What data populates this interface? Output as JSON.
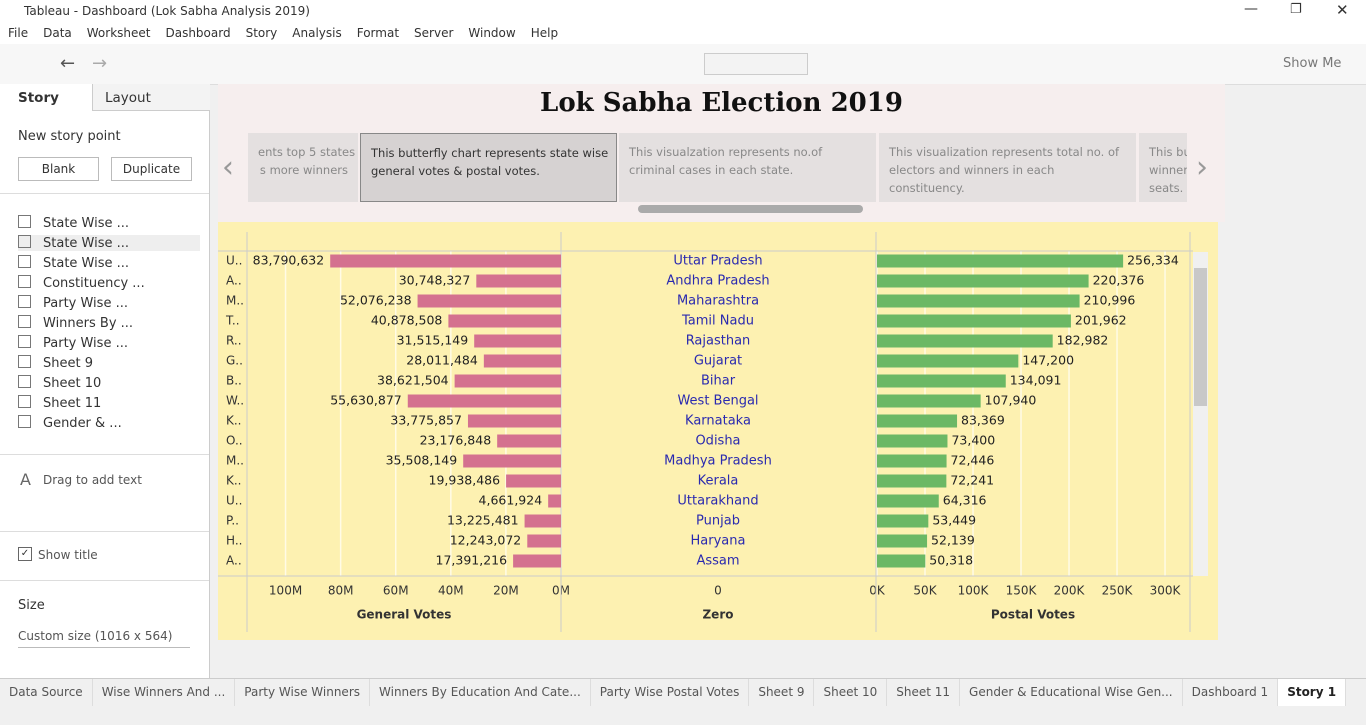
{
  "window": {
    "title": "Tableau - Dashboard (Lok Sabha Analysis 2019)"
  },
  "menu": [
    "File",
    "Data",
    "Worksheet",
    "Dashboard",
    "Story",
    "Analysis",
    "Format",
    "Server",
    "Window",
    "Help"
  ],
  "toolbar": {
    "show_me": "Show Me"
  },
  "sidebar": {
    "tabs": [
      "Story",
      "Layout"
    ],
    "new_story_point": "New story point",
    "buttons": [
      "Blank",
      "Duplicate"
    ],
    "sheets": [
      "State Wise ...",
      "State Wise ...",
      "State Wise ...",
      "Constituency ...",
      "Party Wise ...",
      "Winners By ...",
      "Party Wise ...",
      "Sheet 9",
      "Sheet 10",
      "Sheet 11",
      "Gender & ..."
    ],
    "drag_text": "Drag to add text",
    "show_title": "Show title",
    "size_label": "Size",
    "size_value": "Custom size (1016 x 564)"
  },
  "story": {
    "title": "Lok Sabha Election 2019",
    "points": [
      [
        "ents top 5 states",
        "s more winners"
      ],
      [
        "This butterfly chart represents state wise",
        "general votes & postal votes."
      ],
      [
        "This visualzation represents no.of",
        "criminal cases in each state."
      ],
      [
        "This visualization represents total no. of",
        "electors and winners in each",
        "constituency."
      ],
      [
        "This bu",
        "winner",
        "seats."
      ]
    ]
  },
  "chart": {
    "row_labels": [
      "U..",
      "A..",
      "M..",
      "T..",
      "R..",
      "G..",
      "B..",
      "W..",
      "K..",
      "O..",
      "M..",
      "K..",
      "U..",
      "P..",
      "H..",
      "A.."
    ],
    "states": [
      "Uttar Pradesh",
      "Andhra Pradesh",
      "Maharashtra",
      "Tamil Nadu",
      "Rajasthan",
      "Gujarat",
      "Bihar",
      "West Bengal",
      "Karnataka",
      "Odisha",
      "Madhya Pradesh",
      "Kerala",
      "Uttarakhand",
      "Punjab",
      "Haryana",
      "Assam"
    ],
    "general": {
      "title": "General Votes",
      "color": "#d4718f",
      "reversed": true,
      "xlim": [
        0,
        114000000
      ],
      "values": [
        83790632,
        30748327,
        52076238,
        40878508,
        31515149,
        28011484,
        38621504,
        55630877,
        33775857,
        23176848,
        35508149,
        19938486,
        4661924,
        13225481,
        12243072,
        17391216
      ],
      "value_labels": [
        "83,790,632",
        "30,748,327",
        "52,076,238",
        "40,878,508",
        "31,515,149",
        "28,011,484",
        "38,621,504",
        "55,630,877",
        "33,775,857",
        "23,176,848",
        "35,508,149",
        "19,938,486",
        "4,661,924",
        "13,225,481",
        "12,243,072",
        "17,391,216"
      ],
      "xticks": [
        {
          "value": 100000000,
          "label": "100M"
        },
        {
          "value": 80000000,
          "label": "80M"
        },
        {
          "value": 60000000,
          "label": "60M"
        },
        {
          "value": 40000000,
          "label": "40M"
        },
        {
          "value": 20000000,
          "label": "20M"
        },
        {
          "value": 0,
          "label": "0M"
        }
      ]
    },
    "zero": {
      "title": "Zero",
      "xticks": [
        0
      ]
    },
    "postal": {
      "title": "Postal Votes",
      "color": "#6bb865",
      "xlim": [
        0,
        326000
      ],
      "values": [
        256334,
        220376,
        210996,
        201962,
        182982,
        147200,
        134091,
        107940,
        83369,
        73400,
        72446,
        72241,
        64316,
        53449,
        52139,
        50318
      ],
      "value_labels": [
        "256,334",
        "220,376",
        "210,996",
        "201,962",
        "182,982",
        "147,200",
        "134,091",
        "107,940",
        "83,369",
        "73,400",
        "72,446",
        "72,241",
        "64,316",
        "53,449",
        "52,139",
        "50,318"
      ],
      "xticks": [
        {
          "value": 0,
          "label": "0K"
        },
        {
          "value": 50000,
          "label": "50K"
        },
        {
          "value": 100000,
          "label": "100K"
        },
        {
          "value": 150000,
          "label": "150K"
        },
        {
          "value": 200000,
          "label": "200K"
        },
        {
          "value": 250000,
          "label": "250K"
        },
        {
          "value": 300000,
          "label": "300K"
        }
      ]
    }
  },
  "bottom_tabs": [
    "Data Source",
    "Wise Winners And ...",
    "Party Wise Winners",
    "Winners By Education And Cate...",
    "Party Wise Postal Votes",
    "Sheet 9",
    "Sheet 10",
    "Sheet 11",
    "Gender & Educational Wise Gen...",
    "Dashboard 1",
    "Story 1"
  ]
}
